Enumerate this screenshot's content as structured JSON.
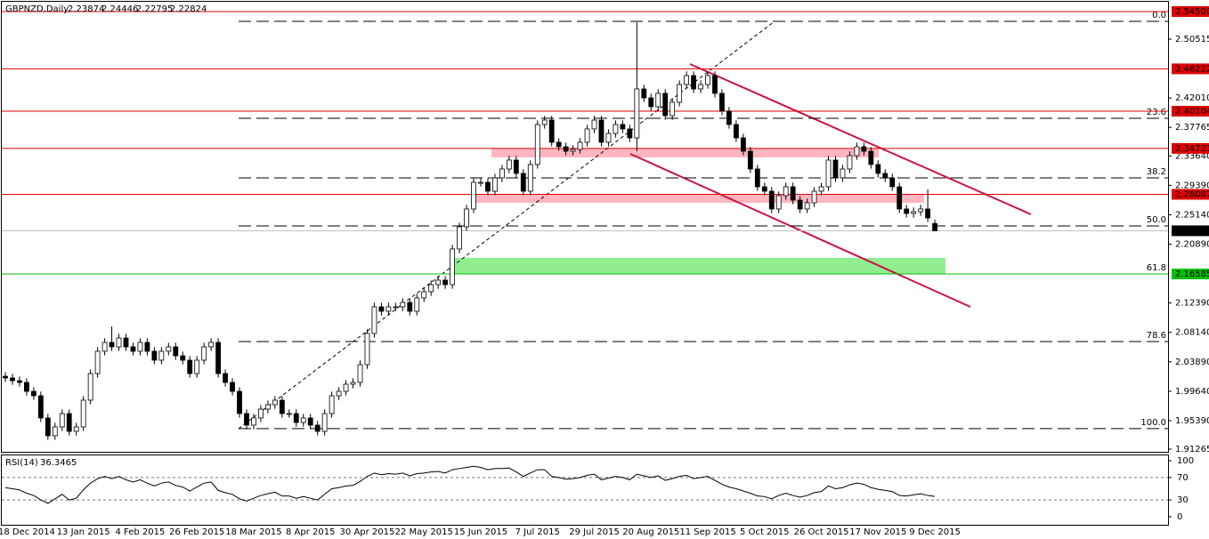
{
  "chart_data": [
    {
      "type": "candlestick",
      "title": "GBPNZD,Daily",
      "up_color": "#ffffff",
      "down_color": "#000000",
      "wick_color": "#000000",
      "ylim": [
        1.9088,
        2.5617
      ],
      "yticks": [
        {
          "value": 2.50515,
          "label": "2.50515"
        },
        {
          "value": 2.4201,
          "label": "2.42010"
        },
        {
          "value": 2.37765,
          "label": "2.37765"
        },
        {
          "value": 2.3364,
          "label": "2.33640"
        },
        {
          "value": 2.2939,
          "label": "2.29390"
        },
        {
          "value": 2.2514,
          "label": "2.25140"
        },
        {
          "value": 2.2089,
          "label": "2.20890"
        },
        {
          "value": 2.1239,
          "label": "2.12390"
        },
        {
          "value": 2.0814,
          "label": "2.08140"
        },
        {
          "value": 2.0389,
          "label": "2.03890"
        },
        {
          "value": 1.9964,
          "label": "1.99640"
        },
        {
          "value": 1.9539,
          "label": "1.95390"
        },
        {
          "value": 1.91265,
          "label": "1.91265"
        }
      ],
      "levels": [
        {
          "value": 2.545,
          "label": "2.54500",
          "line_color": "#e00000",
          "label_background": "#e00000",
          "label_color": "#ffffff"
        },
        {
          "value": 2.46222,
          "label": "2.46222",
          "line_color": "#e00000",
          "label_background": "#e00000",
          "label_color": "#ffffff"
        },
        {
          "value": 2.40104,
          "label": "2.40104",
          "line_color": "#e00000",
          "label_background": "#e00000",
          "label_color": "#ffffff"
        },
        {
          "value": 2.34721,
          "label": "2.34721",
          "line_color": "#e00000",
          "label_background": "#e00000",
          "label_color": "#ffffff"
        },
        {
          "value": 2.28087,
          "label": "2.28087",
          "line_color": "#e00000",
          "label_background": "#e00000",
          "label_color": "#ffffff"
        },
        {
          "value": 2.22824,
          "label": "2.22824",
          "line_color": "#c0c0c0",
          "label_background": "#000000",
          "label_color": "#ffffff"
        },
        {
          "value": 2.16585,
          "label": "2.16585",
          "line_color": "#00c000",
          "label_background": "#00c000",
          "label_color": "#000000"
        }
      ],
      "fibonacci": [
        {
          "price": 2.5309,
          "label": "0.0"
        },
        {
          "price": 2.3908,
          "label": "23.6"
        },
        {
          "price": 2.3047,
          "label": "38.2"
        },
        {
          "price": 2.2353,
          "label": "50.0"
        },
        {
          "price": 2.1659,
          "label": "61.8"
        },
        {
          "price": 2.0682,
          "label": "78.6"
        },
        {
          "price": 1.9423,
          "label": "100.0"
        }
      ],
      "categories": [
        null,
        null,
        null,
        "18 Dec 2014",
        null,
        null,
        null,
        null,
        null,
        null,
        null,
        "13 Jan 2015",
        null,
        null,
        null,
        null,
        null,
        null,
        null,
        "4 Feb 2015",
        null,
        null,
        null,
        null,
        null,
        null,
        null,
        "26 Feb 2015",
        null,
        null,
        null,
        null,
        null,
        null,
        null,
        "18 Mar 2015",
        null,
        null,
        null,
        null,
        null,
        null,
        null,
        "8 Apr 2015",
        null,
        null,
        null,
        null,
        null,
        null,
        null,
        "30 Apr 2015",
        null,
        null,
        null,
        null,
        null,
        null,
        null,
        "22 May 2015",
        null,
        null,
        null,
        null,
        null,
        null,
        null,
        "15 Jun 2015",
        null,
        null,
        null,
        null,
        null,
        null,
        null,
        "7 Jul 2015",
        null,
        null,
        null,
        null,
        null,
        null,
        null,
        "29 Jul 2015",
        null,
        null,
        null,
        null,
        null,
        null,
        null,
        "20 Aug 2015",
        null,
        null,
        null,
        null,
        null,
        null,
        null,
        "11 Sep 2015",
        null,
        null,
        null,
        null,
        null,
        null,
        null,
        "5 Oct 2015",
        null,
        null,
        null,
        null,
        null,
        null,
        null,
        "26 Oct 2015",
        null,
        null,
        null,
        null,
        null,
        null,
        null,
        "17 Nov 2015",
        null,
        null,
        null,
        null,
        null,
        null,
        null,
        "9 Dec 2015"
      ],
      "open": [
        2.018,
        2.0155,
        2.0116,
        2.0091,
        1.9962,
        1.9898,
        1.9577,
        1.932,
        1.9448,
        1.9641,
        1.9384,
        1.9448,
        1.9834,
        2.0219,
        2.0541,
        2.0669,
        2.0605,
        2.0733,
        2.0605,
        2.0541,
        2.0669,
        2.0541,
        2.0412,
        2.0541,
        2.0605,
        2.0476,
        2.0412,
        2.0219,
        2.0412,
        2.0605,
        2.0669,
        2.0219,
        2.0091,
        1.9962,
        1.9641,
        1.9474,
        1.9577,
        1.9705,
        1.9769,
        1.9834,
        1.9641,
        1.9641,
        1.9512,
        1.9577,
        1.9474,
        1.9384,
        1.9641,
        1.9898,
        1.9962,
        2.0065,
        2.0091,
        2.0348,
        2.0798,
        2.1183,
        2.1119,
        2.1183,
        2.1183,
        2.1247,
        2.1119,
        2.1312,
        2.1402,
        2.1504,
        2.1569,
        2.1504,
        2.2019,
        2.234,
        2.2597,
        2.2982,
        2.2982,
        2.2854,
        2.3047,
        2.3175,
        2.3304,
        2.3111,
        2.2854,
        2.324,
        2.3818,
        2.3882,
        2.3561,
        2.3497,
        2.3432,
        2.3458,
        2.3561,
        2.3754,
        2.3882,
        2.3561,
        2.3689,
        2.3818,
        2.3754,
        2.3625,
        2.4332,
        2.4203,
        2.4075,
        2.4268,
        2.3946,
        2.4139,
        2.4396,
        2.4525,
        2.4332,
        2.4396,
        2.4525,
        2.4268,
        2.4011,
        2.3818,
        2.3625,
        2.3432,
        2.3175,
        2.2918,
        2.2854,
        2.2597,
        2.279,
        2.2918,
        2.2725,
        2.2597,
        2.2687,
        2.2854,
        2.2918,
        2.3304,
        2.3047,
        2.3175,
        2.3368,
        2.3497,
        2.3432,
        2.324,
        2.3111,
        2.3047,
        2.2918,
        2.2597,
        2.2533,
        2.2558,
        2.2597,
        2.23874
      ],
      "high": [
        2.024,
        2.0215,
        2.0176,
        2.0151,
        2.0022,
        1.9958,
        1.9637,
        1.9508,
        1.9701,
        1.9701,
        1.9508,
        1.9894,
        2.0279,
        2.0601,
        2.0729,
        2.09,
        2.0793,
        2.0793,
        2.0665,
        2.0729,
        2.0729,
        2.0601,
        2.0601,
        2.0665,
        2.0665,
        2.0536,
        2.0472,
        2.0472,
        2.0665,
        2.0729,
        2.0729,
        2.0279,
        2.0151,
        2.0022,
        1.9701,
        1.9637,
        1.9765,
        1.9829,
        1.9894,
        1.9894,
        1.9701,
        1.9701,
        1.9637,
        1.9637,
        1.9534,
        1.9701,
        1.9958,
        2.0022,
        2.0125,
        2.0151,
        2.0408,
        2.0858,
        2.1243,
        2.1243,
        2.1243,
        2.1243,
        2.1307,
        2.1307,
        2.1372,
        2.1462,
        2.1564,
        2.1629,
        2.1629,
        2.2079,
        2.24,
        2.2657,
        2.3042,
        2.3042,
        2.3042,
        2.3107,
        2.3235,
        2.3364,
        2.3364,
        2.3171,
        2.33,
        2.3878,
        2.3942,
        2.3942,
        2.3621,
        2.3557,
        2.3518,
        2.3621,
        2.3814,
        2.3942,
        2.3942,
        2.3749,
        2.3878,
        2.3878,
        2.3814,
        2.5296,
        2.4392,
        2.4263,
        2.4328,
        2.4328,
        2.4199,
        2.4456,
        2.4585,
        2.4585,
        2.4456,
        2.4585,
        2.4585,
        2.4328,
        2.4071,
        2.3878,
        2.3685,
        2.3492,
        2.3235,
        2.2978,
        2.2914,
        2.285,
        2.2978,
        2.2978,
        2.2785,
        2.2747,
        2.2914,
        2.2978,
        2.3364,
        2.3364,
        2.3235,
        2.3428,
        2.3557,
        2.3557,
        2.3492,
        2.33,
        2.3171,
        2.3107,
        2.2978,
        2.2657,
        2.2618,
        2.2657,
        2.288,
        2.24446
      ],
      "low": [
        2.0095,
        2.0056,
        2.0031,
        1.9902,
        1.9838,
        1.9517,
        1.926,
        1.926,
        1.9388,
        1.9324,
        1.9324,
        1.9388,
        1.9774,
        2.0159,
        2.0481,
        2.0545,
        2.0545,
        2.0545,
        2.0481,
        2.0481,
        2.0481,
        2.0352,
        2.0352,
        2.0481,
        2.0416,
        2.0352,
        2.0159,
        2.0159,
        2.0352,
        2.0545,
        2.0159,
        2.0031,
        1.9902,
        1.9581,
        1.9414,
        1.9414,
        1.9517,
        1.9645,
        1.9709,
        1.9581,
        1.9581,
        1.9452,
        1.9452,
        1.9414,
        1.9324,
        1.9324,
        1.9581,
        1.9838,
        1.9902,
        2.0005,
        2.0031,
        2.0288,
        2.0738,
        2.1059,
        2.1059,
        2.1123,
        2.1123,
        2.1059,
        2.1059,
        2.1252,
        2.1342,
        2.1444,
        2.1444,
        2.1444,
        2.1959,
        2.228,
        2.2537,
        2.2922,
        2.2794,
        2.2794,
        2.2987,
        2.3115,
        2.3051,
        2.2794,
        2.2794,
        2.318,
        2.3758,
        2.3501,
        2.3437,
        2.3372,
        2.3372,
        2.3398,
        2.3501,
        2.3694,
        2.3501,
        2.3501,
        2.3629,
        2.3694,
        2.3565,
        2.3432,
        2.4143,
        2.4015,
        2.4015,
        2.3886,
        2.3886,
        2.4079,
        2.4336,
        2.4272,
        2.4272,
        2.4336,
        2.4208,
        2.3951,
        2.3758,
        2.3565,
        2.3372,
        2.3115,
        2.2858,
        2.2794,
        2.2537,
        2.2537,
        2.273,
        2.2665,
        2.2537,
        2.2537,
        2.2627,
        2.2794,
        2.2858,
        2.2987,
        2.2987,
        2.3115,
        2.3308,
        2.3372,
        2.318,
        2.3051,
        2.2987,
        2.2858,
        2.2537,
        2.2473,
        2.2473,
        2.2498,
        2.2408,
        2.22795
      ],
      "close": [
        2.0155,
        2.0116,
        2.0091,
        1.9962,
        1.9898,
        1.9577,
        1.932,
        1.9448,
        1.9641,
        1.9384,
        1.9448,
        1.9834,
        2.0219,
        2.0541,
        2.0669,
        2.0605,
        2.0733,
        2.0605,
        2.0541,
        2.0669,
        2.0541,
        2.0412,
        2.0541,
        2.0605,
        2.0476,
        2.0412,
        2.0219,
        2.0412,
        2.0605,
        2.0669,
        2.0219,
        2.0091,
        1.9962,
        1.9641,
        1.9474,
        1.9577,
        1.9705,
        1.9769,
        1.9834,
        1.9641,
        1.9641,
        1.9512,
        1.9577,
        1.9474,
        1.9384,
        1.9641,
        1.9898,
        1.9962,
        2.0065,
        2.0091,
        2.0348,
        2.0798,
        2.1183,
        2.1119,
        2.1183,
        2.1183,
        2.1247,
        2.1119,
        2.1312,
        2.1402,
        2.1504,
        2.1569,
        2.1504,
        2.2019,
        2.234,
        2.2597,
        2.2982,
        2.2982,
        2.2854,
        2.3047,
        2.3175,
        2.3304,
        2.3111,
        2.2854,
        2.324,
        2.3818,
        2.3882,
        2.3561,
        2.3497,
        2.3432,
        2.3458,
        2.3561,
        2.3754,
        2.3882,
        2.3561,
        2.3689,
        2.3818,
        2.3754,
        2.3625,
        2.4332,
        2.4203,
        2.4075,
        2.4268,
        2.3946,
        2.4139,
        2.4396,
        2.4525,
        2.4332,
        2.4396,
        2.4525,
        2.4268,
        2.4011,
        2.3818,
        2.3625,
        2.3432,
        2.3175,
        2.2918,
        2.2854,
        2.2597,
        2.279,
        2.2918,
        2.2725,
        2.2597,
        2.2687,
        2.2854,
        2.2918,
        2.3304,
        2.3047,
        2.3175,
        2.3368,
        2.3497,
        2.3432,
        2.324,
        2.3111,
        2.3047,
        2.2918,
        2.2597,
        2.2533,
        2.2558,
        2.2597,
        2.2468,
        2.22824
      ]
    },
    {
      "type": "line",
      "title": "RSI(14)",
      "color": "#000000",
      "ylim": [
        -14.3,
        109.5
      ],
      "yticks": [
        0,
        30,
        70,
        100
      ],
      "dashed_levels": [
        30,
        70
      ],
      "values": [
        52,
        50,
        48,
        42,
        38,
        30,
        24,
        32,
        40,
        30,
        33,
        48,
        60,
        68,
        72,
        68,
        72,
        66,
        62,
        66,
        60,
        55,
        60,
        62,
        56,
        53,
        46,
        53,
        60,
        62,
        47,
        43,
        40,
        32,
        28,
        33,
        38,
        41,
        44,
        37,
        37,
        33,
        36,
        33,
        30,
        40,
        50,
        52,
        55,
        56,
        63,
        72,
        78,
        75,
        77,
        76,
        78,
        73,
        77,
        78,
        80,
        81,
        78,
        84,
        86,
        88,
        90,
        88,
        84,
        86,
        86,
        87,
        80,
        72,
        78,
        84,
        84,
        72,
        70,
        67,
        68,
        70,
        74,
        76,
        66,
        69,
        72,
        70,
        66,
        76,
        73,
        70,
        73,
        65,
        68,
        72,
        74,
        68,
        70,
        72,
        65,
        58,
        53,
        50,
        46,
        42,
        37,
        36,
        32,
        38,
        42,
        38,
        35,
        38,
        43,
        45,
        55,
        50,
        52,
        57,
        60,
        58,
        52,
        49,
        47,
        45,
        38,
        37,
        39,
        41,
        38,
        36.3465
      ]
    }
  ]
}
